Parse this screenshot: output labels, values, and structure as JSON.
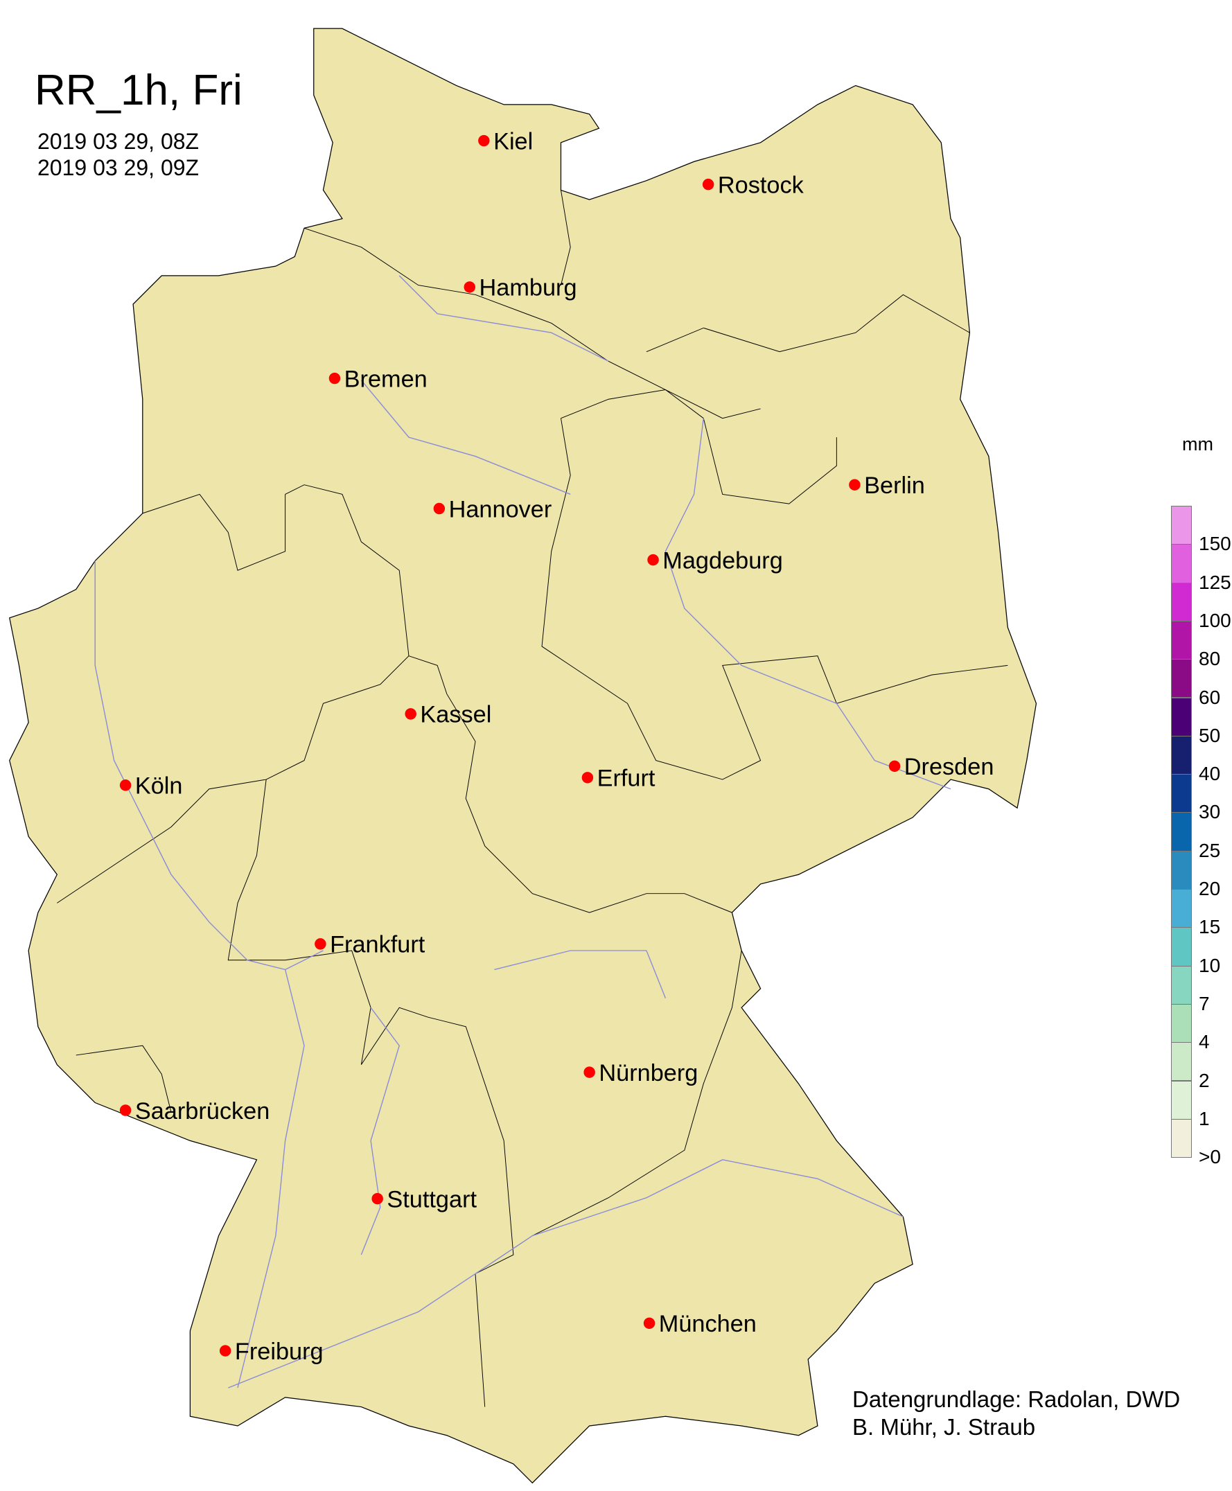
{
  "title": "RR_1h, Fri",
  "dates": [
    "2019 03 29, 08Z",
    "2019 03 29, 09Z"
  ],
  "credits": [
    "Datengrundlage: Radolan, DWD",
    "B. Mühr, J. Straub"
  ],
  "colors": {
    "land": "#ede5aa",
    "border": "#000000",
    "river": "#8a8ad8",
    "city_marker": "#ff0000"
  },
  "cities": [
    "Kiel",
    "Rostock",
    "Hamburg",
    "Bremen",
    "Berlin",
    "Hannover",
    "Magdeburg",
    "Kassel",
    "Dresden",
    "Köln",
    "Erfurt",
    "Frankfurt",
    "Nürnberg",
    "Saarbrücken",
    "Stuttgart",
    "München",
    "Freiburg"
  ],
  "legend": {
    "unit": "mm",
    "labels": [
      "150",
      "125",
      "100",
      "80",
      "60",
      "50",
      "40",
      "30",
      "25",
      "20",
      "15",
      "10",
      "7",
      "4",
      "2",
      "1",
      ">0"
    ],
    "colors": [
      "#eb96e8",
      "#e060e0",
      "#d22ad2",
      "#b015a8",
      "#8b0a86",
      "#4c0075",
      "#17206e",
      "#0b3a8f",
      "#0a66ac",
      "#2a8bbf",
      "#49aed6",
      "#5fc6c4",
      "#86d6c0",
      "#aadfb8",
      "#cce9c8",
      "#dff2d8",
      "#f2f0dc"
    ]
  }
}
